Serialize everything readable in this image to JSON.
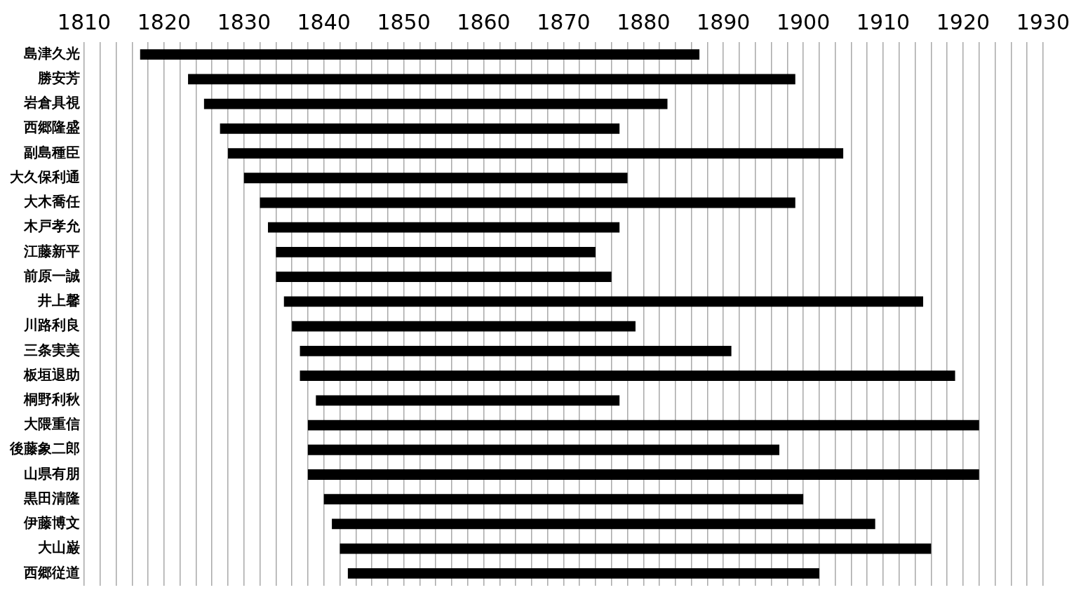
{
  "chart_data": {
    "type": "bar",
    "orientation": "horizontal",
    "categories": [
      "島津久光",
      "勝安芳",
      "岩倉具視",
      "西郷隆盛",
      "副島種臣",
      "大久保利通",
      "大木喬任",
      "木戸孝允",
      "江藤新平",
      "前原一誠",
      "井上馨",
      "川路利良",
      "三条実美",
      "板垣退助",
      "桐野利秋",
      "大隈重信",
      "後藤象二郎",
      "山県有朋",
      "黒田清隆",
      "伊藤博文",
      "大山巌",
      "西郷従道"
    ],
    "base": [
      1817,
      1823,
      1825,
      1827,
      1828,
      1830,
      1832,
      1833,
      1834,
      1834,
      1835,
      1836,
      1837,
      1837,
      1839,
      1838,
      1838,
      1838,
      1840,
      1841,
      1842,
      1843
    ],
    "values": [
      70,
      76,
      58,
      50,
      77,
      48,
      67,
      44,
      40,
      42,
      80,
      43,
      54,
      82,
      38,
      84,
      59,
      84,
      60,
      68,
      74,
      59
    ],
    "color": "#000000",
    "xlim": [
      1810,
      1930
    ],
    "xticks": [
      1810,
      {
        "value": 1812,
        "label": null
      },
      {
        "value": 1814,
        "label": null
      },
      {
        "value": 1816,
        "label": null
      },
      {
        "value": 1818,
        "label": null
      },
      1820,
      {
        "value": 1822,
        "label": null
      },
      {
        "value": 1824,
        "label": null
      },
      {
        "value": 1826,
        "label": null
      },
      {
        "value": 1828,
        "label": null
      },
      1830,
      {
        "value": 1832,
        "label": null
      },
      {
        "value": 1834,
        "label": null
      },
      {
        "value": 1836,
        "label": null
      },
      {
        "value": 1838,
        "label": null
      },
      1840,
      {
        "value": 1842,
        "label": null
      },
      {
        "value": 1844,
        "label": null
      },
      {
        "value": 1846,
        "label": null
      },
      {
        "value": 1848,
        "label": null
      },
      1850,
      {
        "value": 1852,
        "label": null
      },
      {
        "value": 1854,
        "label": null
      },
      {
        "value": 1856,
        "label": null
      },
      {
        "value": 1858,
        "label": null
      },
      1860,
      {
        "value": 1862,
        "label": null
      },
      {
        "value": 1864,
        "label": null
      },
      {
        "value": 1866,
        "label": null
      },
      {
        "value": 1868,
        "label": null
      },
      1870,
      {
        "value": 1872,
        "label": null
      },
      {
        "value": 1874,
        "label": null
      },
      {
        "value": 1876,
        "label": null
      },
      {
        "value": 1878,
        "label": null
      },
      1880,
      {
        "value": 1882,
        "label": null
      },
      {
        "value": 1884,
        "label": null
      },
      {
        "value": 1886,
        "label": null
      },
      {
        "value": 1888,
        "label": null
      },
      1890,
      {
        "value": 1892,
        "label": null
      },
      {
        "value": 1894,
        "label": null
      },
      {
        "value": 1896,
        "label": null
      },
      {
        "value": 1898,
        "label": null
      },
      1900,
      {
        "value": 1902,
        "label": null
      },
      {
        "value": 1904,
        "label": null
      },
      {
        "value": 1906,
        "label": null
      },
      {
        "value": 1908,
        "label": null
      },
      1910,
      {
        "value": 1912,
        "label": null
      },
      {
        "value": 1914,
        "label": null
      },
      {
        "value": 1916,
        "label": null
      },
      {
        "value": 1918,
        "label": null
      },
      1920,
      {
        "value": 1922,
        "label": null
      },
      {
        "value": 1924,
        "label": null
      },
      {
        "value": 1926,
        "label": null
      },
      {
        "value": 1928,
        "label": null
      },
      1930
    ],
    "grid": "x",
    "legend": false
  }
}
